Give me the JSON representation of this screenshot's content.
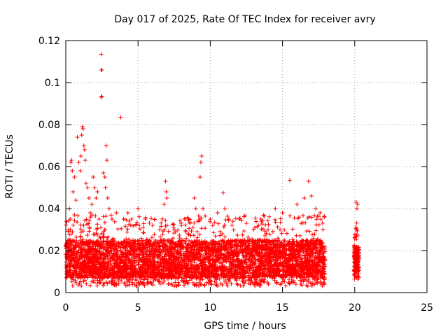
{
  "chart_data": {
    "type": "scatter",
    "title": "Day 017 of 2025, Rate Of TEC Index for receiver avry",
    "xlabel": "GPS time / hours",
    "ylabel": "ROTI / TECUs",
    "xlim": [
      0,
      25
    ],
    "ylim": [
      0,
      0.12
    ],
    "x_ticks": [
      0,
      5,
      10,
      15,
      20,
      25
    ],
    "x_tick_labels": [
      "0",
      "5",
      "10",
      "15",
      "20",
      "25"
    ],
    "y_ticks": [
      0,
      0.02,
      0.04,
      0.06,
      0.08,
      0.1,
      0.12
    ],
    "y_tick_labels": [
      "0",
      "0.02",
      "0.04",
      "0.06",
      "0.08",
      "0.1",
      "0.12"
    ],
    "grid": true,
    "marker": "+",
    "color": "#ff0000",
    "series": [
      {
        "name": "ROTI",
        "points": [
          [
            0.1,
            0.012
          ],
          [
            0.15,
            0.02
          ],
          [
            0.2,
            0.03
          ],
          [
            0.25,
            0.04
          ],
          [
            0.3,
            0.035
          ],
          [
            0.35,
            0.062
          ],
          [
            0.4,
            0.063
          ],
          [
            0.45,
            0.058
          ],
          [
            0.5,
            0.048
          ],
          [
            0.6,
            0.055
          ],
          [
            0.7,
            0.044
          ],
          [
            0.8,
            0.074
          ],
          [
            0.9,
            0.062
          ],
          [
            1.0,
            0.058
          ],
          [
            1.05,
            0.065
          ],
          [
            1.1,
            0.075
          ],
          [
            1.15,
            0.079
          ],
          [
            1.2,
            0.078
          ],
          [
            1.25,
            0.07
          ],
          [
            1.3,
            0.068
          ],
          [
            1.35,
            0.063
          ],
          [
            1.4,
            0.052
          ],
          [
            1.5,
            0.05
          ],
          [
            1.6,
            0.045
          ],
          [
            1.7,
            0.038
          ],
          [
            1.8,
            0.042
          ],
          [
            1.9,
            0.055
          ],
          [
            2.0,
            0.05
          ],
          [
            2.1,
            0.045
          ],
          [
            2.2,
            0.048
          ],
          [
            2.3,
            0.035
          ],
          [
            2.45,
            0.1135
          ],
          [
            2.45,
            0.106
          ],
          [
            2.45,
            0.093
          ],
          [
            2.5,
            0.0935
          ],
          [
            2.5,
            0.106
          ],
          [
            2.6,
            0.057
          ],
          [
            2.7,
            0.055
          ],
          [
            2.75,
            0.05
          ],
          [
            2.8,
            0.07
          ],
          [
            2.85,
            0.063
          ],
          [
            2.9,
            0.045
          ],
          [
            3.0,
            0.04
          ],
          [
            3.2,
            0.035
          ],
          [
            3.5,
            0.038
          ],
          [
            3.8,
            0.0835
          ],
          [
            4.0,
            0.035
          ],
          [
            4.3,
            0.038
          ],
          [
            4.5,
            0.032
          ],
          [
            5.0,
            0.04
          ],
          [
            5.5,
            0.035
          ],
          [
            6.0,
            0.032
          ],
          [
            6.5,
            0.03
          ],
          [
            6.8,
            0.042
          ],
          [
            6.9,
            0.053
          ],
          [
            6.95,
            0.048
          ],
          [
            7.0,
            0.045
          ],
          [
            7.5,
            0.03
          ],
          [
            8.0,
            0.032
          ],
          [
            8.5,
            0.028
          ],
          [
            8.9,
            0.045
          ],
          [
            9.0,
            0.04
          ],
          [
            9.3,
            0.055
          ],
          [
            9.35,
            0.062
          ],
          [
            9.4,
            0.065
          ],
          [
            9.5,
            0.04
          ],
          [
            10.0,
            0.035
          ],
          [
            10.5,
            0.038
          ],
          [
            10.9,
            0.0475
          ],
          [
            11.0,
            0.04
          ],
          [
            11.5,
            0.032
          ],
          [
            12.0,
            0.035
          ],
          [
            12.5,
            0.033
          ],
          [
            13.0,
            0.03
          ],
          [
            13.5,
            0.035
          ],
          [
            14.0,
            0.03
          ],
          [
            14.5,
            0.04
          ],
          [
            15.0,
            0.038
          ],
          [
            15.5,
            0.0535
          ],
          [
            16.0,
            0.042
          ],
          [
            16.5,
            0.045
          ],
          [
            16.8,
            0.053
          ],
          [
            17.0,
            0.046
          ],
          [
            17.3,
            0.04
          ],
          [
            17.6,
            0.038
          ],
          [
            17.9,
            0.036
          ],
          [
            20.1,
            0.043
          ],
          [
            20.15,
            0.04
          ],
          [
            20.2,
            0.042
          ],
          [
            20.1,
            0.03
          ],
          [
            20.2,
            0.02
          ],
          [
            20.15,
            0.012
          ],
          [
            20.2,
            0.008
          ]
        ],
        "dense_bands": [
          {
            "x_range": [
              0,
              17.95
            ],
            "y_floor": 0.003,
            "typical_high": 0.025
          },
          {
            "x_range": [
              19.95,
              20.3
            ],
            "y_floor": 0.006,
            "typical_high": 0.022
          }
        ]
      }
    ]
  }
}
